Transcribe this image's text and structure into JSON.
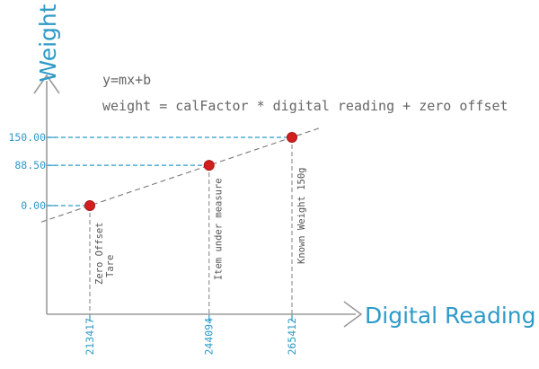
{
  "axes": {
    "y_title": "Weight",
    "x_title": "Digital Reading"
  },
  "equations": {
    "general": "y=mx+b",
    "specific": "weight = calFactor * digital reading + zero offset"
  },
  "points": [
    {
      "reading": 213417,
      "reading_label": "213417",
      "weight": 0.0,
      "weight_label": "0.00",
      "note_lines": [
        "Zero Offset",
        "Tare"
      ]
    },
    {
      "reading": 244094,
      "reading_label": "244094",
      "weight": 88.5,
      "weight_label": "88.50",
      "note_lines": [
        "Item under measure"
      ]
    },
    {
      "reading": 265412,
      "reading_label": "265412",
      "weight": 150.0,
      "weight_label": "150.00",
      "note_lines": [
        "Known Weight 150g"
      ]
    }
  ],
  "colors": {
    "axis": "#9a9a9a",
    "accent": "#2e9ac8",
    "point": "#d11f1f",
    "fit_line": "#777777"
  }
}
